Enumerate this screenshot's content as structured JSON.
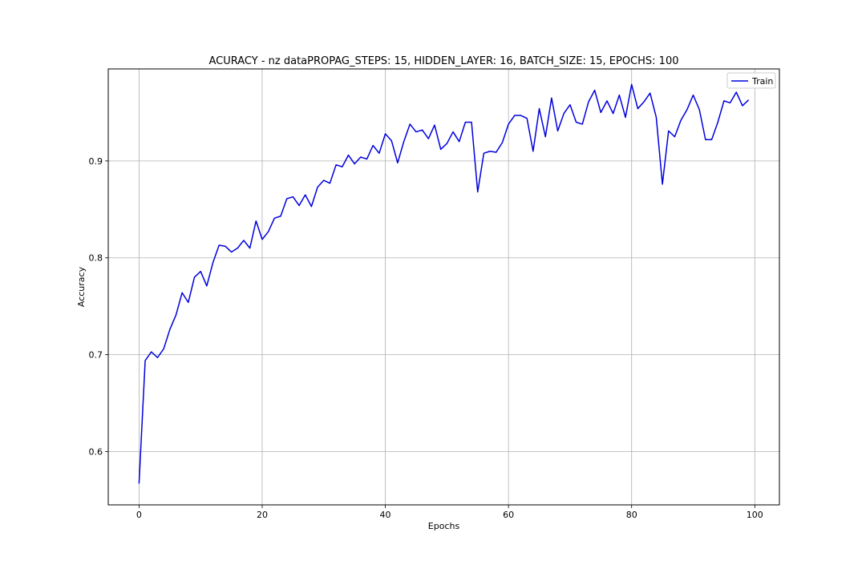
{
  "chart_data": {
    "type": "line",
    "title": "ACURACY - nz dataPROPAG_STEPS: 15, HIDDEN_LAYER: 16, BATCH_SIZE: 15, EPOCHS: 100",
    "xlabel": "Epochs",
    "ylabel": "Accuracy",
    "xlim": [
      -5,
      104
    ],
    "ylim": [
      0.545,
      0.995
    ],
    "xticks": [
      0,
      20,
      40,
      60,
      80,
      100
    ],
    "yticks": [
      0.6,
      0.7,
      0.8,
      0.9
    ],
    "ytick_labels": [
      "0.6",
      "0.7",
      "0.8",
      "0.9"
    ],
    "grid": true,
    "legend_position": "top-right",
    "series": [
      {
        "name": "Train",
        "color": "#0000dd",
        "x": [
          0,
          1,
          2,
          3,
          4,
          5,
          6,
          7,
          8,
          9,
          10,
          11,
          12,
          13,
          14,
          15,
          16,
          17,
          18,
          19,
          20,
          21,
          22,
          23,
          24,
          25,
          26,
          27,
          28,
          29,
          30,
          31,
          32,
          33,
          34,
          35,
          36,
          37,
          38,
          39,
          40,
          41,
          42,
          43,
          44,
          45,
          46,
          47,
          48,
          49,
          50,
          51,
          52,
          53,
          54,
          55,
          56,
          57,
          58,
          59,
          60,
          61,
          62,
          63,
          64,
          65,
          66,
          67,
          68,
          69,
          70,
          71,
          72,
          73,
          74,
          75,
          76,
          77,
          78,
          79,
          80,
          81,
          82,
          83,
          84,
          85,
          86,
          87,
          88,
          89,
          90,
          91,
          92,
          93,
          94,
          95,
          96,
          97,
          98,
          99
        ],
        "y": [
          0.567,
          0.694,
          0.703,
          0.697,
          0.706,
          0.726,
          0.741,
          0.764,
          0.754,
          0.78,
          0.786,
          0.771,
          0.795,
          0.813,
          0.812,
          0.806,
          0.81,
          0.818,
          0.81,
          0.838,
          0.819,
          0.827,
          0.841,
          0.843,
          0.861,
          0.863,
          0.854,
          0.865,
          0.853,
          0.873,
          0.88,
          0.877,
          0.896,
          0.894,
          0.906,
          0.897,
          0.904,
          0.902,
          0.916,
          0.908,
          0.928,
          0.921,
          0.898,
          0.92,
          0.938,
          0.93,
          0.932,
          0.923,
          0.937,
          0.912,
          0.918,
          0.93,
          0.92,
          0.94,
          0.94,
          0.868,
          0.908,
          0.91,
          0.909,
          0.919,
          0.938,
          0.947,
          0.947,
          0.944,
          0.91,
          0.954,
          0.925,
          0.965,
          0.931,
          0.949,
          0.958,
          0.94,
          0.938,
          0.961,
          0.973,
          0.95,
          0.962,
          0.949,
          0.968,
          0.945,
          0.979,
          0.954,
          0.961,
          0.97,
          0.945,
          0.876,
          0.931,
          0.925,
          0.942,
          0.953,
          0.968,
          0.953,
          0.922,
          0.922,
          0.94,
          0.962,
          0.96,
          0.971,
          0.957,
          0.963
        ]
      }
    ]
  }
}
